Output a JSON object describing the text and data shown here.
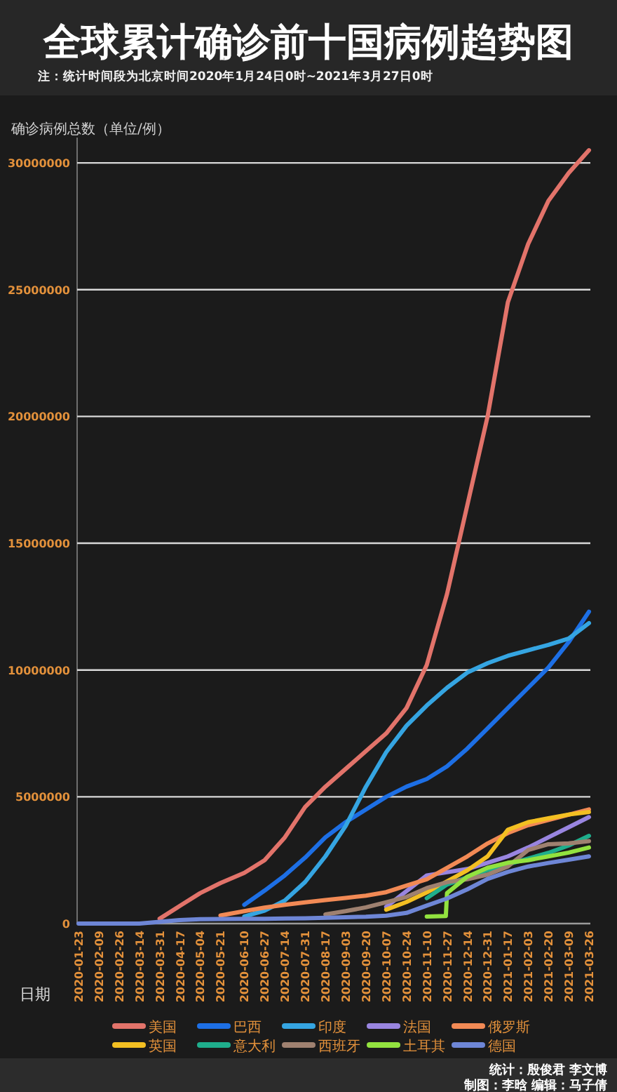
{
  "chart_data": {
    "type": "line",
    "title": "全球累计确诊前十国病例趋势图",
    "subtitle": "注：统计时间段为北京时间2020年1月24日0时~2021年3月27日0时",
    "ylabel": "确诊病例总数（单位/例）",
    "xlabel": "日期",
    "series": [
      {
        "name": "美国",
        "color": "#e2736a",
        "x": [
          "2020-03-31",
          "2020-04-17",
          "2020-05-04",
          "2020-05-21",
          "2020-06-10",
          "2020-06-27",
          "2020-07-14",
          "2020-07-31",
          "2020-08-17",
          "2020-09-03",
          "2020-09-20",
          "2020-10-07",
          "2020-10-24",
          "2020-11-10",
          "2020-11-27",
          "2020-12-14",
          "2020-12-31",
          "2021-01-17",
          "2021-02-03",
          "2021-02-20",
          "2021-03-09",
          "2021-03-26"
        ],
        "values": [
          190000,
          700000,
          1200000,
          1600000,
          2000000,
          2500000,
          3400000,
          4600000,
          5400000,
          6100000,
          6800000,
          7500000,
          8500000,
          10200000,
          13000000,
          16500000,
          20000000,
          24500000,
          26800000,
          28500000,
          29600000,
          30500000
        ]
      },
      {
        "name": "巴西",
        "color": "#1d6fe5",
        "x": [
          "2020-06-10",
          "2020-06-27",
          "2020-07-14",
          "2020-07-31",
          "2020-08-17",
          "2020-09-03",
          "2020-09-20",
          "2020-10-07",
          "2020-10-24",
          "2020-11-10",
          "2020-11-27",
          "2020-12-14",
          "2020-12-31",
          "2021-01-17",
          "2021-02-03",
          "2021-02-20",
          "2021-03-09",
          "2021-03-26"
        ],
        "values": [
          740000,
          1300000,
          1900000,
          2600000,
          3400000,
          4000000,
          4500000,
          5000000,
          5400000,
          5700000,
          6200000,
          6900000,
          7700000,
          8500000,
          9300000,
          10100000,
          11100000,
          12300000
        ]
      },
      {
        "name": "印度",
        "color": "#35a5e2",
        "x": [
          "2020-06-10",
          "2020-06-27",
          "2020-07-14",
          "2020-07-31",
          "2020-08-17",
          "2020-09-03",
          "2020-09-20",
          "2020-10-07",
          "2020-10-24",
          "2020-11-10",
          "2020-11-27",
          "2020-12-14",
          "2020-12-31",
          "2021-01-17",
          "2021-02-03",
          "2021-02-20",
          "2021-03-09",
          "2021-03-26"
        ],
        "values": [
          280000,
          510000,
          910000,
          1640000,
          2650000,
          3850000,
          5400000,
          6760000,
          7800000,
          8600000,
          9300000,
          9900000,
          10270000,
          10560000,
          10780000,
          10990000,
          11240000,
          11850000
        ]
      },
      {
        "name": "法国",
        "color": "#9985e0",
        "x": [
          "2020-10-07",
          "2020-11-10",
          "2020-12-14",
          "2020-12-31",
          "2021-01-17",
          "2021-02-03",
          "2021-02-20",
          "2021-03-09",
          "2021-03-26"
        ],
        "values": [
          660000,
          1900000,
          2150000,
          2400000,
          2650000,
          3000000,
          3400000,
          3800000,
          4200000
        ]
      },
      {
        "name": "俄罗斯",
        "color": "#f28a55",
        "x": [
          "2020-05-21",
          "2020-06-10",
          "2020-06-27",
          "2020-07-14",
          "2020-07-31",
          "2020-08-17",
          "2020-09-03",
          "2020-09-20",
          "2020-10-07",
          "2020-10-24",
          "2020-11-10",
          "2020-11-27",
          "2020-12-14",
          "2020-12-31",
          "2021-01-17",
          "2021-02-03",
          "2021-03-26"
        ],
        "values": [
          320000,
          490000,
          630000,
          740000,
          840000,
          930000,
          1010000,
          1100000,
          1240000,
          1500000,
          1750000,
          2200000,
          2650000,
          3160000,
          3570000,
          3880000,
          4500000
        ]
      },
      {
        "name": "英国",
        "color": "#f3bf22",
        "x": [
          "2020-10-07",
          "2020-10-24",
          "2020-11-10",
          "2020-12-14",
          "2020-12-31",
          "2021-01-17",
          "2021-02-03",
          "2021-02-20",
          "2021-03-09",
          "2021-03-26"
        ],
        "values": [
          550000,
          850000,
          1230000,
          2100000,
          2650000,
          3700000,
          4000000,
          4150000,
          4300000,
          4400000
        ]
      },
      {
        "name": "意大利",
        "color": "#1fae8c",
        "x": [
          "2020-11-10",
          "2020-11-27",
          "2020-12-31",
          "2021-02-20",
          "2021-03-09",
          "2021-03-26"
        ],
        "values": [
          1000000,
          1540000,
          2110000,
          2790000,
          3080000,
          3460000
        ]
      },
      {
        "name": "西班牙",
        "color": "#9f8170",
        "x": [
          "2020-08-17",
          "2020-09-03",
          "2020-09-20",
          "2020-10-07",
          "2020-10-24",
          "2020-11-10",
          "2020-11-27",
          "2020-12-14",
          "2020-12-31",
          "2021-01-17",
          "2021-02-03",
          "2021-02-20",
          "2021-03-09",
          "2021-03-26"
        ],
        "values": [
          360000,
          490000,
          640000,
          840000,
          1050000,
          1400000,
          1630000,
          1750000,
          1930000,
          2250000,
          2900000,
          3130000,
          3160000,
          3250000
        ]
      },
      {
        "name": "土耳其",
        "color": "#92e23f",
        "x": [
          "2020-11-10",
          "2020-11-26",
          "2020-11-27",
          "2020-12-14",
          "2020-12-31",
          "2021-01-17",
          "2021-02-03",
          "2021-02-20",
          "2021-03-09",
          "2021-03-26"
        ],
        "values": [
          280000,
          300000,
          1200000,
          1850000,
          2200000,
          2400000,
          2500000,
          2650000,
          2800000,
          3000000
        ]
      },
      {
        "name": "德国",
        "color": "#6e86d6",
        "x": [
          "2020-01-23",
          "2020-02-09",
          "2020-02-26",
          "2020-03-14",
          "2020-03-31",
          "2020-04-17",
          "2020-05-04",
          "2020-05-21",
          "2020-06-10",
          "2020-06-27",
          "2020-07-14",
          "2020-07-31",
          "2020-08-17",
          "2020-09-03",
          "2020-09-20",
          "2020-10-07",
          "2020-10-24",
          "2020-11-10",
          "2020-11-27",
          "2020-12-14",
          "2020-12-31",
          "2021-01-17",
          "2021-02-03",
          "2021-02-20",
          "2021-03-09",
          "2021-03-26"
        ],
        "values": [
          0,
          0,
          0,
          0,
          70000,
          140000,
          170000,
          180000,
          190000,
          190000,
          200000,
          210000,
          230000,
          250000,
          270000,
          310000,
          420000,
          710000,
          990000,
          1350000,
          1760000,
          2040000,
          2250000,
          2390000,
          2520000,
          2650000
        ]
      }
    ],
    "xlim": [
      "2020-01-23",
      "2021-03-26"
    ],
    "xticks": [
      "2020-01-23",
      "2020-02-09",
      "2020-02-26",
      "2020-03-14",
      "2020-03-31",
      "2020-04-17",
      "2020-05-04",
      "2020-05-21",
      "2020-06-10",
      "2020-06-27",
      "2020-07-14",
      "2020-07-31",
      "2020-08-17",
      "2020-09-03",
      "2020-09-20",
      "2020-10-07",
      "2020-10-24",
      "2020-11-10",
      "2020-11-27",
      "2020-12-14",
      "2020-12-31",
      "2021-01-17",
      "2021-02-03",
      "2021-02-20",
      "2021-03-09",
      "2021-03-26"
    ],
    "ylim": [
      0,
      31000000
    ],
    "yticks": [
      0,
      5000000,
      10000000,
      15000000,
      20000000,
      25000000,
      30000000
    ],
    "grid": "y",
    "legend": "bottom",
    "annotations": [
      "统计：殷俊君 李文博",
      "制图：李晗 编辑：马子倩"
    ]
  }
}
